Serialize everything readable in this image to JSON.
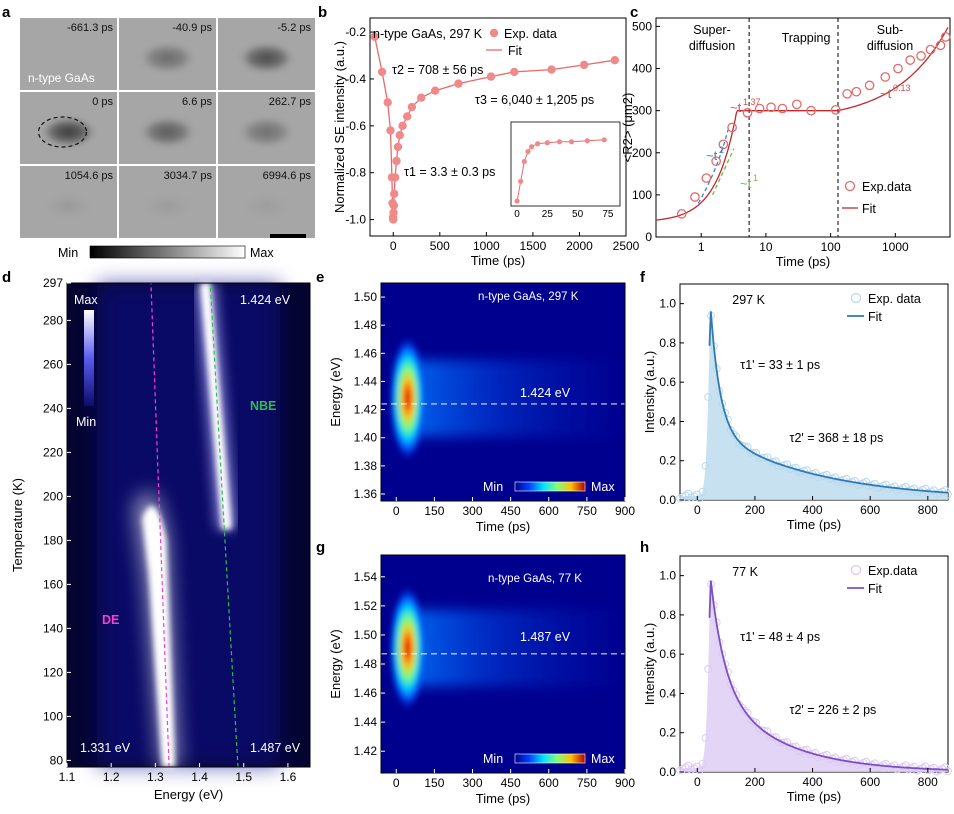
{
  "panels": {
    "a": {
      "label": "a",
      "frames": [
        "-661.3 ps",
        "-40.9 ps",
        "-5.2 ps",
        "0 ps",
        "6.6 ps",
        "262.7 ps",
        "1054.6 ps",
        "3034.7 ps",
        "6994.6 ps"
      ],
      "sample": "n-type GaAs",
      "scale_min": "Min",
      "scale_max": "Max"
    },
    "d": {
      "label": "d",
      "max_label": "Max",
      "min_label": "Min",
      "label_de": "DE",
      "label_nbe": "NBE",
      "ann_1424": "1.424 eV",
      "ann_1331": "1.331 eV",
      "ann_1487": "1.487 eV"
    },
    "e": {
      "label": "e",
      "sample": "n-type GaAs, 297 K",
      "line_label": "1.424 eV",
      "cb_min": "Min",
      "cb_max": "Max"
    },
    "g": {
      "label": "g",
      "sample": "n-type GaAs, 77 K",
      "line_label": "1.487 eV",
      "cb_min": "Min",
      "cb_max": "Max"
    }
  },
  "chart_data": [
    {
      "id": "b",
      "type": "scatter",
      "title": "n-type GaAs, 297 K",
      "xlabel": "Time (ps)",
      "ylabel": "Normalized SE intensity (a.u.)",
      "xlim": [
        -250,
        2500
      ],
      "ylim": [
        -1.07,
        -0.14
      ],
      "xticks": [
        0,
        500,
        1000,
        1500,
        2000,
        2500
      ],
      "yticks": [
        -1.0,
        -0.8,
        -0.6,
        -0.4,
        -0.2
      ],
      "legend": [
        "Exp. data",
        "Fit"
      ],
      "annotations": [
        "τ2 = 708 ± 56 ps",
        "τ3 = 6,040 ± 1,205 ps",
        "τ1 = 3.3 ± 0.3 ps"
      ],
      "points": [
        [
          -200,
          -0.22
        ],
        [
          -120,
          -0.37
        ],
        [
          -60,
          -0.5
        ],
        [
          -30,
          -0.62
        ],
        [
          -15,
          -0.82
        ],
        [
          -8,
          -0.93
        ],
        [
          -3,
          -0.99
        ],
        [
          0,
          -1.0
        ],
        [
          3,
          -0.97
        ],
        [
          6,
          -0.94
        ],
        [
          10,
          -0.89
        ],
        [
          20,
          -0.82
        ],
        [
          35,
          -0.75
        ],
        [
          50,
          -0.69
        ],
        [
          70,
          -0.64
        ],
        [
          100,
          -0.6
        ],
        [
          150,
          -0.56
        ],
        [
          200,
          -0.52
        ],
        [
          300,
          -0.48
        ],
        [
          450,
          -0.45
        ],
        [
          700,
          -0.42
        ],
        [
          1050,
          -0.39
        ],
        [
          1300,
          -0.37
        ],
        [
          1700,
          -0.36
        ],
        [
          2050,
          -0.34
        ],
        [
          2380,
          -0.32
        ]
      ],
      "inset": {
        "xticks": [
          0,
          25,
          50,
          75
        ],
        "xlim": [
          -5,
          85
        ],
        "ylim": [
          -1.05,
          -0.2
        ],
        "points": [
          [
            0,
            -1.0
          ],
          [
            3,
            -0.8
          ],
          [
            6,
            -0.6
          ],
          [
            9,
            -0.5
          ],
          [
            12,
            -0.45
          ],
          [
            17,
            -0.42
          ],
          [
            25,
            -0.41
          ],
          [
            35,
            -0.4
          ],
          [
            45,
            -0.4
          ],
          [
            58,
            -0.39
          ],
          [
            72,
            -0.38
          ]
        ]
      }
    },
    {
      "id": "c",
      "type": "scatter",
      "xscale": "log",
      "xlabel": "Time (ps)",
      "ylabel": "<R2> (μm2)",
      "xlim": [
        0.2,
        7000
      ],
      "ylim": [
        0,
        520
      ],
      "xticks": [
        1,
        10,
        100,
        1000
      ],
      "xtick_labels": [
        "1",
        "10",
        "100",
        "1000"
      ],
      "yticks": [
        0,
        100,
        200,
        300,
        400,
        500
      ],
      "regions": [
        "Super-diffusion",
        "Trapping",
        "Sub-diffusion"
      ],
      "region_bounds": [
        5.5,
        130
      ],
      "legend": [
        "Exp.data",
        "Fit"
      ],
      "fit_labels": [
        "~t1.37",
        "~t2",
        "~t1",
        "~t0.13"
      ],
      "points": [
        [
          0.5,
          55
        ],
        [
          0.8,
          95
        ],
        [
          1.2,
          140
        ],
        [
          1.7,
          180
        ],
        [
          2.2,
          220
        ],
        [
          3.0,
          260
        ],
        [
          5.2,
          295
        ],
        [
          8,
          305
        ],
        [
          12,
          308
        ],
        [
          18,
          305
        ],
        [
          30,
          315
        ],
        [
          50,
          300
        ],
        [
          120,
          302
        ],
        [
          180,
          340
        ],
        [
          250,
          345
        ],
        [
          400,
          360
        ],
        [
          700,
          380
        ],
        [
          1100,
          400
        ],
        [
          1700,
          420
        ],
        [
          2500,
          430
        ],
        [
          3500,
          445
        ],
        [
          5000,
          455
        ],
        [
          6000,
          475
        ]
      ]
    },
    {
      "id": "d",
      "type": "heatmap",
      "xlabel": "Energy (eV)",
      "ylabel": "Temperature (K)",
      "xlim": [
        1.1,
        1.65
      ],
      "ylim": [
        77,
        297
      ],
      "xticks": [
        1.1,
        1.2,
        1.3,
        1.4,
        1.5,
        1.6
      ],
      "xtick_labels": [
        "1.1",
        "1.2",
        "1.3",
        "1.4",
        "1.5",
        "1.6"
      ],
      "yticks": [
        80,
        100,
        120,
        140,
        160,
        180,
        200,
        220,
        240,
        260,
        280,
        297
      ],
      "de_line": [
        [
          1.331,
          77
        ],
        [
          1.29,
          297
        ]
      ],
      "nbe_line": [
        [
          1.487,
          77
        ],
        [
          1.424,
          297
        ]
      ]
    },
    {
      "id": "e",
      "type": "heatmap",
      "xlabel": "Time (ps)",
      "ylabel": "Energy (eV)",
      "xlim": [
        -60,
        900
      ],
      "ylim": [
        1.355,
        1.51
      ],
      "xticks": [
        0,
        150,
        300,
        450,
        600,
        750,
        900
      ],
      "yticks": [
        1.36,
        1.38,
        1.4,
        1.42,
        1.44,
        1.46,
        1.48,
        1.5
      ],
      "ytick_labels": [
        "1.36",
        "1.38",
        "1.40",
        "1.42",
        "1.44",
        "1.46",
        "1.48",
        "1.50"
      ],
      "line_energy": 1.424
    },
    {
      "id": "f",
      "type": "line",
      "title": "297 K",
      "xlabel": "Time (ps)",
      "ylabel": "Intensity (a.u.)",
      "xlim": [
        -60,
        870
      ],
      "ylim": [
        0,
        1.1
      ],
      "xticks": [
        0,
        200,
        400,
        600,
        800
      ],
      "yticks": [
        0.0,
        0.2,
        0.4,
        0.6,
        0.8,
        1.0
      ],
      "ytick_labels": [
        "0.0",
        "0.2",
        "0.4",
        "0.6",
        "0.8",
        "1.0"
      ],
      "legend": [
        "Exp. data",
        "Fit"
      ],
      "annotations": [
        "τ1' = 33 ± 1 ps",
        "τ2' = 368 ± 18 ps"
      ],
      "peak_time": 45,
      "tau1": 33,
      "tau2": 368,
      "amp1": 0.65,
      "amp2": 0.35,
      "rise": 12,
      "color": "#2e7ab5",
      "fill": "#b9d9ee"
    },
    {
      "id": "g",
      "type": "heatmap",
      "xlabel": "Time (ps)",
      "ylabel": "Energy (eV)",
      "xlim": [
        -60,
        900
      ],
      "ylim": [
        1.405,
        1.555
      ],
      "xticks": [
        0,
        150,
        300,
        450,
        600,
        750,
        900
      ],
      "yticks": [
        1.42,
        1.44,
        1.46,
        1.48,
        1.5,
        1.52,
        1.54
      ],
      "ytick_labels": [
        "1.42",
        "1.44",
        "1.46",
        "1.48",
        "1.50",
        "1.52",
        "1.54"
      ],
      "line_energy": 1.487
    },
    {
      "id": "h",
      "type": "line",
      "title": "77 K",
      "xlabel": "Time (ps)",
      "ylabel": "Intensity (a.u.)",
      "xlim": [
        -60,
        870
      ],
      "ylim": [
        0,
        1.1
      ],
      "xticks": [
        0,
        200,
        400,
        600,
        800
      ],
      "yticks": [
        0.0,
        0.2,
        0.4,
        0.6,
        0.8,
        1.0
      ],
      "ytick_labels": [
        "0.0",
        "0.2",
        "0.4",
        "0.6",
        "0.8",
        "1.0"
      ],
      "legend": [
        "Exp.data",
        "Fit"
      ],
      "annotations": [
        "τ1' = 48 ± 4 ps",
        "τ2' = 226 ± 2 ps"
      ],
      "peak_time": 45,
      "tau1": 48,
      "tau2": 226,
      "amp1": 0.55,
      "amp2": 0.45,
      "rise": 12,
      "color": "#7d4fc4",
      "fill": "#dccaf3"
    }
  ]
}
